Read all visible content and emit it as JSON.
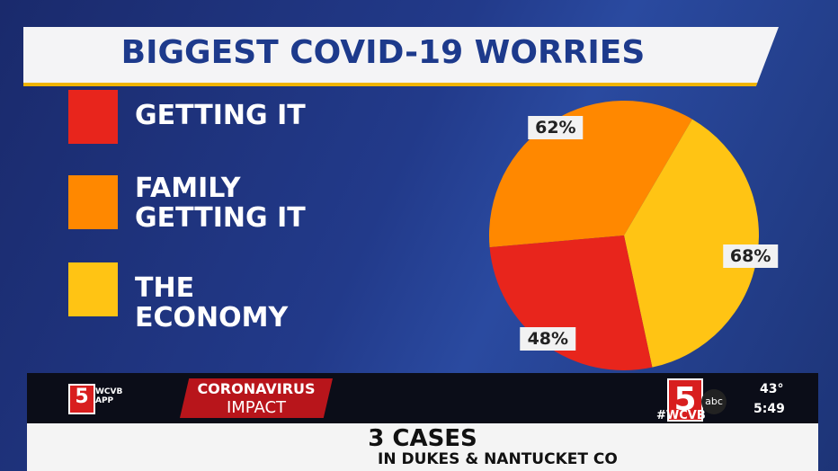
{
  "chart_data": {
    "type": "pie",
    "title": "BIGGEST COVID-19 WORRIES",
    "categories": [
      "GETTING IT",
      "FAMILY GETTING IT",
      "THE ECONOMY"
    ],
    "values": [
      48,
      62,
      68
    ],
    "value_labels": [
      "48%",
      "62%",
      "68%"
    ],
    "colors": [
      "#e8251c",
      "#ff8800",
      "#ffc414"
    ]
  },
  "ticker": {
    "app_logo": "5",
    "app_label": "WCVB APP",
    "segment_top": "CORONAVIRUS",
    "segment_bottom": "IMPACT",
    "headline": "3 CASES",
    "subline": "IN DUKES & NANTUCKET CO",
    "station_logo": "5",
    "network": "abc",
    "hashtag": "#WCVB",
    "temperature": "43°",
    "time": "5:49"
  }
}
